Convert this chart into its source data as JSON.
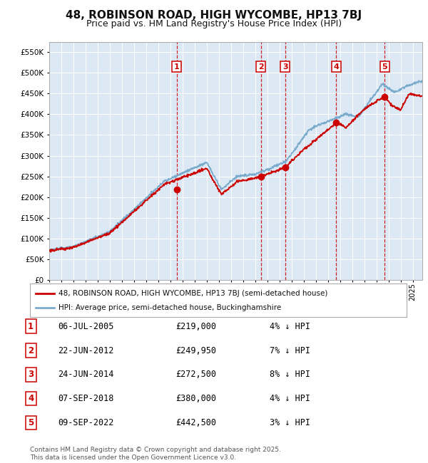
{
  "title": "48, ROBINSON ROAD, HIGH WYCOMBE, HP13 7BJ",
  "subtitle": "Price paid vs. HM Land Registry's House Price Index (HPI)",
  "title_fontsize": 11,
  "subtitle_fontsize": 9,
  "background_color": "#ffffff",
  "plot_bg_color": "#dce9f5",
  "grid_color": "#ffffff",
  "ylim": [
    0,
    575000
  ],
  "yticks": [
    0,
    50000,
    100000,
    150000,
    200000,
    250000,
    300000,
    350000,
    400000,
    450000,
    500000,
    550000
  ],
  "sale_line_color": "#cc0000",
  "hpi_line_color": "#7aabcc",
  "sale_marker_color": "#cc0000",
  "vline_color": "#cc0000",
  "sales": [
    {
      "date_num": 2005.51,
      "price": 219000,
      "label": "1"
    },
    {
      "date_num": 2012.47,
      "price": 249950,
      "label": "2"
    },
    {
      "date_num": 2014.48,
      "price": 272500,
      "label": "3"
    },
    {
      "date_num": 2018.68,
      "price": 380000,
      "label": "4"
    },
    {
      "date_num": 2022.68,
      "price": 442500,
      "label": "5"
    }
  ],
  "legend_entries": [
    {
      "label": "48, ROBINSON ROAD, HIGH WYCOMBE, HP13 7BJ (semi-detached house)",
      "color": "#cc0000"
    },
    {
      "label": "HPI: Average price, semi-detached house, Buckinghamshire",
      "color": "#7aabcc"
    }
  ],
  "table_rows": [
    {
      "num": "1",
      "date": "06-JUL-2005",
      "price": "£219,000",
      "pct": "4% ↓ HPI"
    },
    {
      "num": "2",
      "date": "22-JUN-2012",
      "price": "£249,950",
      "pct": "7% ↓ HPI"
    },
    {
      "num": "3",
      "date": "24-JUN-2014",
      "price": "£272,500",
      "pct": "8% ↓ HPI"
    },
    {
      "num": "4",
      "date": "07-SEP-2018",
      "price": "£380,000",
      "pct": "4% ↓ HPI"
    },
    {
      "num": "5",
      "date": "09-SEP-2022",
      "price": "£442,500",
      "pct": "3% ↓ HPI"
    }
  ],
  "footnote": "Contains HM Land Registry data © Crown copyright and database right 2025.\nThis data is licensed under the Open Government Licence v3.0.",
  "xmin": 1995.0,
  "xmax": 2025.8
}
